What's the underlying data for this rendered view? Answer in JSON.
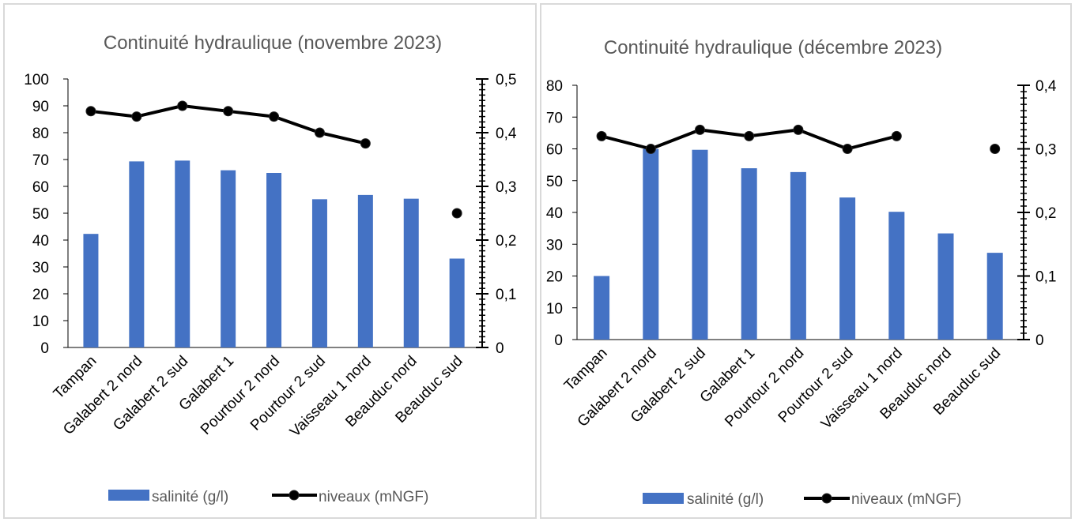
{
  "colors": {
    "bar": "#4472c4",
    "line": "#000000",
    "axis": "#000000",
    "text": "#595959",
    "border": "#d9d9d9"
  },
  "chart_data": [
    {
      "type": "bar",
      "title": "Continuité hydraulique (novembre 2023)",
      "categories": [
        "Tampan",
        "Galabert 2 nord",
        "Galabert 2 sud",
        "Galabert 1",
        "Pourtour 2 nord",
        "Pourtour 2 sud",
        "Vaisseau 1 nord",
        "Beauduc nord",
        "Beauduc sud"
      ],
      "series": [
        {
          "name": "salinité (g/l)",
          "type": "bar",
          "axis": "left",
          "values": [
            42.3,
            69.3,
            69.6,
            66,
            65,
            55.2,
            56.8,
            55.4,
            33.1
          ]
        },
        {
          "name": "niveaux (mNGF)",
          "type": "line",
          "axis": "right",
          "values": [
            0.44,
            0.43,
            0.45,
            0.44,
            0.43,
            0.4,
            0.38,
            null,
            0.25
          ]
        }
      ],
      "ylim_left": [
        0,
        100
      ],
      "yticks_left": [
        "0",
        "10",
        "20",
        "30",
        "40",
        "50",
        "60",
        "70",
        "80",
        "90",
        "100"
      ],
      "ylim_right": [
        0,
        0.5
      ],
      "yticks_right": [
        "0",
        "0,1",
        "0,2",
        "0,3",
        "0,4",
        "0,5"
      ],
      "legend": "bottom",
      "grid": false
    },
    {
      "type": "bar",
      "title": "Continuité hydraulique (décembre 2023)",
      "categories": [
        "Tampan",
        "Galabert 2 nord",
        "Galabert 2 sud",
        "Galabert 1",
        "Pourtour 2 nord",
        "Pourtour 2 sud",
        "Vaisseau 1 nord",
        "Beauduc nord",
        "Beauduc sud"
      ],
      "series": [
        {
          "name": "salinité (g/l)",
          "type": "bar",
          "axis": "left",
          "values": [
            20,
            60,
            59.7,
            53.9,
            52.7,
            44.7,
            40.2,
            33.4,
            27.3
          ]
        },
        {
          "name": "niveaux (mNGF)",
          "type": "line",
          "axis": "right",
          "values": [
            0.32,
            0.3,
            0.33,
            0.32,
            0.33,
            0.3,
            0.32,
            null,
            0.3
          ]
        }
      ],
      "ylim_left": [
        0,
        80
      ],
      "yticks_left": [
        "0",
        "10",
        "20",
        "30",
        "40",
        "50",
        "60",
        "70",
        "80"
      ],
      "ylim_right": [
        0,
        0.4
      ],
      "yticks_right": [
        "0",
        "0,1",
        "0,2",
        "0,3",
        "0,4"
      ],
      "legend": "bottom",
      "grid": false
    }
  ]
}
